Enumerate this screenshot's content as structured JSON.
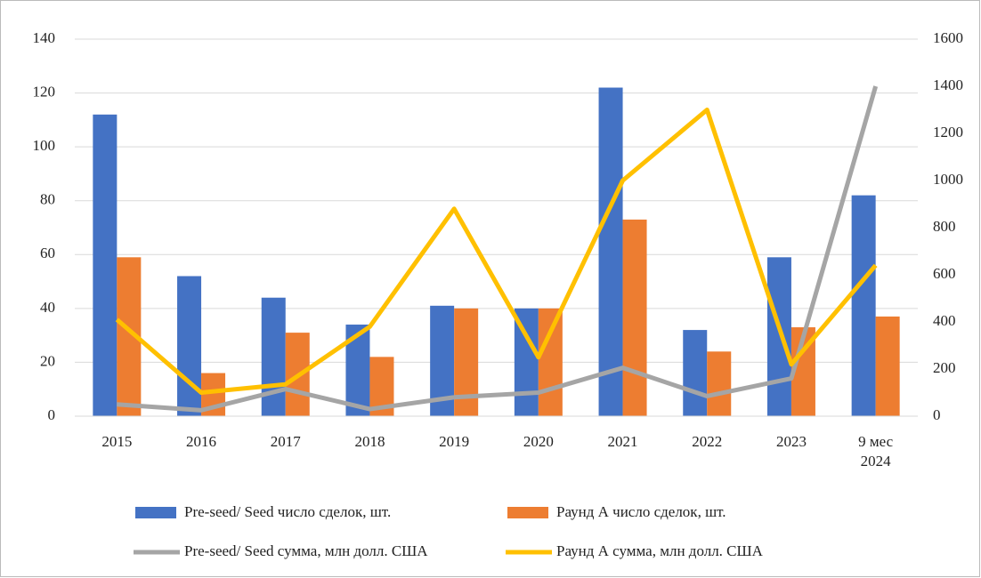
{
  "chart_data": {
    "type": "bar",
    "categories": [
      "2015",
      "2016",
      "2017",
      "2018",
      "2019",
      "2020",
      "2021",
      "2022",
      "2023",
      "9 мес 2024"
    ],
    "series": [
      {
        "name": "Pre-seed/ Seed число сделок, шт.",
        "type": "bar",
        "color": "#4472c4",
        "values": [
          112,
          52,
          44,
          34,
          41,
          40,
          122,
          32,
          59,
          82
        ]
      },
      {
        "name": "Раунд А число сделок, шт.",
        "type": "bar",
        "color": "#ed7d31",
        "values": [
          59,
          16,
          31,
          22,
          40,
          40,
          73,
          24,
          33,
          37
        ]
      },
      {
        "name": "Pre-seed/ Seed сумма, млн долл. США",
        "type": "line",
        "axis": "y2",
        "color": "#a5a5a5",
        "values": [
          50,
          25,
          115,
          30,
          80,
          100,
          205,
          85,
          160,
          1400
        ]
      },
      {
        "name": "Раунд А сумма, млн долл. США",
        "type": "line",
        "axis": "y2",
        "color": "#ffc000",
        "values": [
          410,
          100,
          135,
          380,
          880,
          250,
          1000,
          1300,
          220,
          640
        ]
      }
    ],
    "ylim": [
      0,
      140
    ],
    "yticks": [
      0,
      20,
      40,
      60,
      80,
      100,
      120,
      140
    ],
    "y2lim": [
      0,
      1600
    ],
    "y2ticks": [
      0,
      200,
      400,
      600,
      800,
      1000,
      1200,
      1400,
      1600
    ],
    "grid": true
  }
}
